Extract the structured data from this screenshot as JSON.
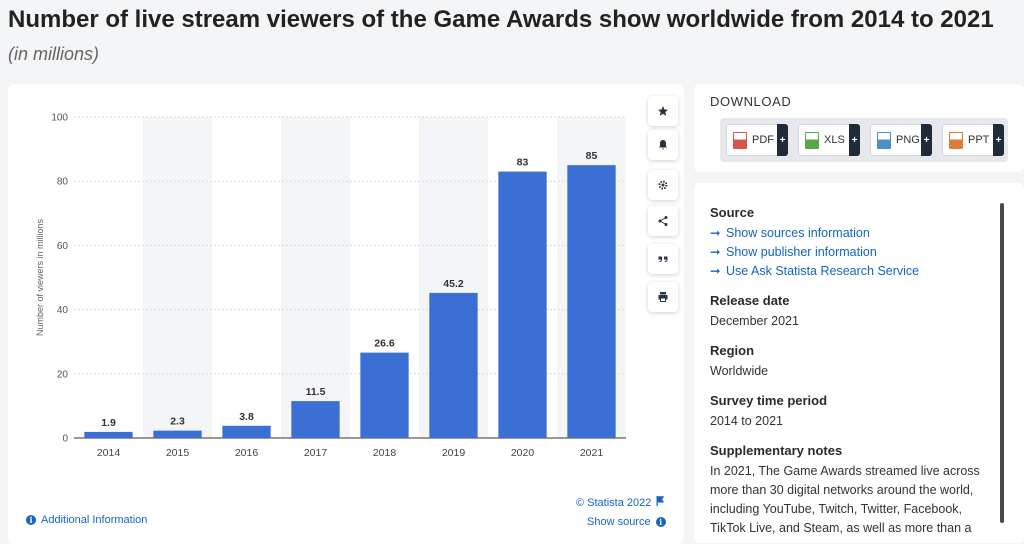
{
  "title": "Number of live stream viewers of the Game Awards show worldwide from 2014 to 2021",
  "subtitle": "(in millions)",
  "toolbar": {
    "icons": [
      "star-icon",
      "bell-icon",
      "gear-icon",
      "share-icon",
      "quote-icon",
      "print-icon"
    ]
  },
  "footer": {
    "copyright": "© Statista 2022",
    "additional_info": "Additional Information",
    "show_source": "Show source"
  },
  "download": {
    "title": "DOWNLOAD",
    "buttons": [
      {
        "label": "PDF",
        "color": "#d9534f"
      },
      {
        "label": "XLS",
        "color": "#5aa845"
      },
      {
        "label": "PNG",
        "color": "#4a90c8"
      },
      {
        "label": "PPT",
        "color": "#e07b39"
      }
    ],
    "plus": "+"
  },
  "info": {
    "source_heading": "Source",
    "source_links": [
      "Show sources information",
      "Show publisher information",
      "Use Ask Statista Research Service"
    ],
    "release_heading": "Release date",
    "release_value": "December 2021",
    "region_heading": "Region",
    "region_value": "Worldwide",
    "survey_heading": "Survey time period",
    "survey_value": "2014 to 2021",
    "notes_heading": "Supplementary notes",
    "notes_value": "In 2021, The Game Awards streamed live across more than 30 digital networks around the world, including YouTube, Twitch, Twitter, Facebook, TikTok Live, and Steam, as well as more than a"
  },
  "chart_data": {
    "type": "bar",
    "categories": [
      "2014",
      "2015",
      "2016",
      "2017",
      "2018",
      "2019",
      "2020",
      "2021"
    ],
    "values": [
      1.9,
      2.3,
      3.8,
      11.5,
      26.6,
      45.2,
      83,
      85
    ],
    "value_labels": [
      "1.9",
      "2.3",
      "3.8",
      "11.5",
      "26.6",
      "45.2",
      "83",
      "85"
    ],
    "ylabel": "Number of viewers in millions",
    "ylim": [
      0,
      100
    ],
    "yticks": [
      0,
      20,
      40,
      60,
      80,
      100
    ],
    "grid": true,
    "bar_color": "#3c6fd4"
  }
}
